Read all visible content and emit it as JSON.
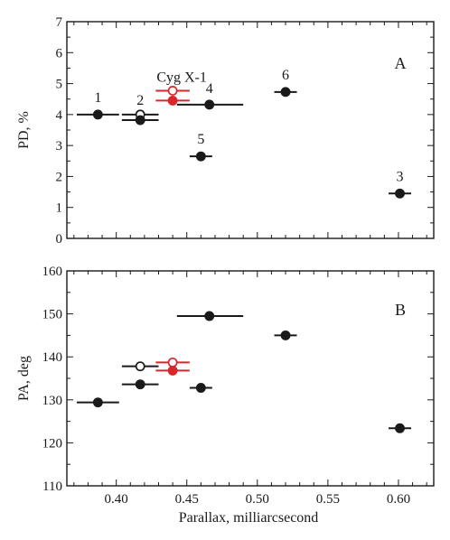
{
  "figure": {
    "xlabel": "Parallax, milliarcsecond",
    "x_ticks": [
      "0.40",
      "0.45",
      "0.50",
      "0.55",
      "0.60"
    ]
  },
  "colors": {
    "black": "#1a1a1a",
    "red": "#d8262b"
  },
  "chart_data": [
    {
      "type": "scatter",
      "panel_label": "A",
      "ylabel": "PD, %",
      "xlim": [
        0.365,
        0.625
      ],
      "ylim": [
        0,
        7
      ],
      "y_ticks": [
        "0",
        "1",
        "2",
        "3",
        "4",
        "5",
        "6",
        "7"
      ],
      "grid": false,
      "series": [
        {
          "name": "",
          "color": "#1a1a1a",
          "points": [
            {
              "x": 0.387,
              "y": 4.0,
              "xerr": [
                0.372,
                0.402
              ],
              "filled": true,
              "label": "1"
            },
            {
              "x": 0.417,
              "y": 4.0,
              "xerr": [
                0.404,
                0.43
              ],
              "filled": false,
              "label": "2"
            },
            {
              "x": 0.417,
              "y": 3.82,
              "xerr": [
                0.404,
                0.43
              ],
              "filled": true,
              "label": ""
            },
            {
              "x": 0.601,
              "y": 1.45,
              "xerr": [
                0.593,
                0.609
              ],
              "filled": true,
              "label": "3"
            },
            {
              "x": 0.466,
              "y": 4.32,
              "xerr": [
                0.443,
                0.49
              ],
              "filled": true,
              "label": "4"
            },
            {
              "x": 0.46,
              "y": 2.65,
              "xerr": [
                0.452,
                0.468
              ],
              "filled": true,
              "label": "5"
            },
            {
              "x": 0.52,
              "y": 4.73,
              "xerr": [
                0.512,
                0.528
              ],
              "filled": true,
              "label": "6"
            }
          ]
        },
        {
          "name": "Cyg X-1",
          "color": "#d8262b",
          "points": [
            {
              "x": 0.44,
              "y": 4.77,
              "xerr": [
                0.428,
                0.452
              ],
              "filled": false
            },
            {
              "x": 0.44,
              "y": 4.45,
              "xerr": [
                0.428,
                0.452
              ],
              "filled": true
            }
          ]
        }
      ]
    },
    {
      "type": "scatter",
      "panel_label": "B",
      "ylabel": "PA, deg",
      "xlim": [
        0.365,
        0.625
      ],
      "ylim": [
        110,
        160
      ],
      "y_ticks": [
        "110",
        "120",
        "130",
        "140",
        "150",
        "160"
      ],
      "grid": false,
      "series": [
        {
          "name": "",
          "color": "#1a1a1a",
          "points": [
            {
              "x": 0.387,
              "y": 129.4,
              "xerr": [
                0.372,
                0.402
              ],
              "filled": true
            },
            {
              "x": 0.417,
              "y": 137.8,
              "xerr": [
                0.404,
                0.43
              ],
              "filled": false
            },
            {
              "x": 0.417,
              "y": 133.6,
              "xerr": [
                0.404,
                0.43
              ],
              "filled": true
            },
            {
              "x": 0.466,
              "y": 149.5,
              "xerr": [
                0.443,
                0.49
              ],
              "filled": true
            },
            {
              "x": 0.46,
              "y": 132.8,
              "xerr": [
                0.452,
                0.468
              ],
              "filled": true
            },
            {
              "x": 0.52,
              "y": 145.0,
              "xerr": [
                0.512,
                0.528
              ],
              "filled": true
            },
            {
              "x": 0.601,
              "y": 123.4,
              "xerr": [
                0.593,
                0.609
              ],
              "filled": true
            }
          ]
        },
        {
          "name": "Cyg X-1",
          "color": "#d8262b",
          "points": [
            {
              "x": 0.44,
              "y": 138.7,
              "xerr": [
                0.428,
                0.452
              ],
              "filled": false
            },
            {
              "x": 0.44,
              "y": 136.8,
              "xerr": [
                0.428,
                0.452
              ],
              "filled": true
            }
          ]
        }
      ]
    }
  ]
}
